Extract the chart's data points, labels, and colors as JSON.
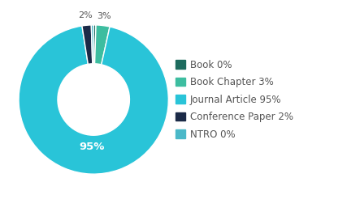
{
  "labels": [
    "Book",
    "Book Chapter",
    "Journal Article",
    "Conference Paper",
    "NTRO"
  ],
  "values": [
    0.5,
    3,
    95,
    2,
    0.5
  ],
  "colors": [
    "#1d6b5e",
    "#3dbda0",
    "#29c4d8",
    "#1b2a47",
    "#4ab8c8"
  ],
  "legend_labels": [
    "Book 0%",
    "Book Chapter 3%",
    "Journal Article 95%",
    "Conference Paper 2%",
    "NTRO 0%"
  ],
  "wedge_labels": [
    "",
    "3%",
    "95%",
    "2%",
    ""
  ],
  "background_color": "#ffffff",
  "label_fontsize": 8.5,
  "legend_fontsize": 8.5,
  "text_color": "#555555"
}
